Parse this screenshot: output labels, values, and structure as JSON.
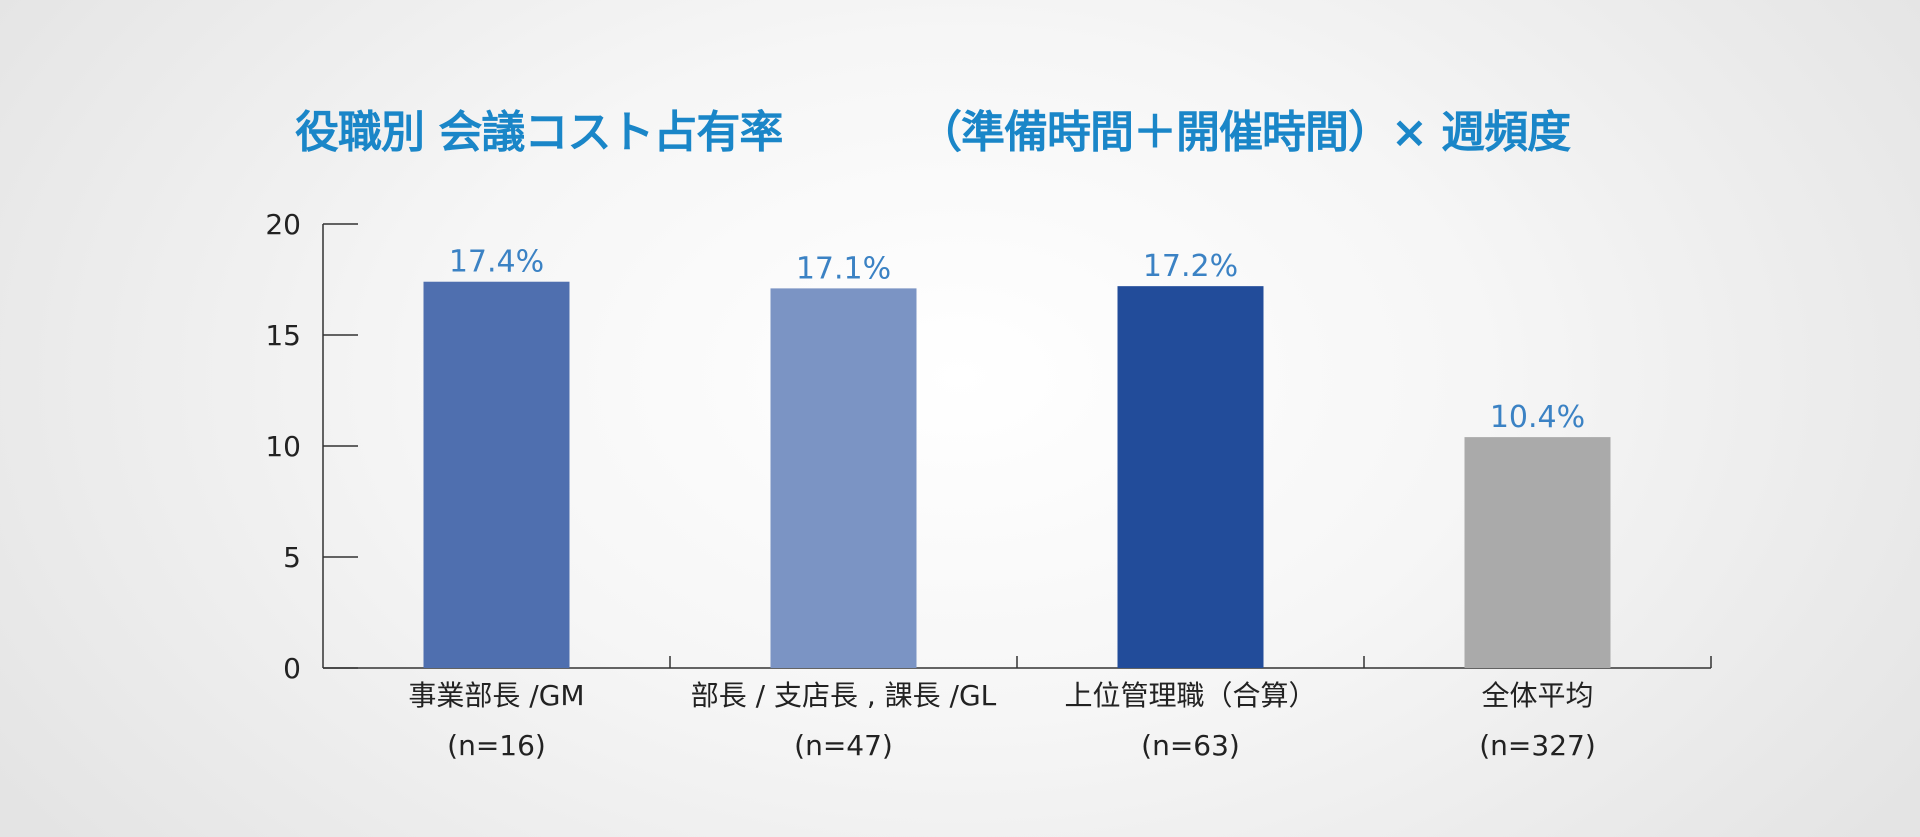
{
  "chart_data": {
    "type": "bar",
    "title": "役職別 会議コスト占有率",
    "subtitle": "（準備時間＋開催時間）× 週頻度",
    "categories": [
      "事業部長 /GM",
      "部長 / 支店長 , 課長 /GL",
      "上位管理職（合算）",
      "全体平均"
    ],
    "category_notes": [
      "(n=16)",
      "(n=47)",
      "(n=63)",
      "(n=327)"
    ],
    "values": [
      17.4,
      17.1,
      17.2,
      10.4
    ],
    "value_labels": [
      "17.4%",
      "17.1%",
      "17.2%",
      "10.4%"
    ],
    "bar_colors": [
      "#4f6faf",
      "#7b94c4",
      "#224c9a",
      "#aaaaaa"
    ],
    "label_color": "#3b82c4",
    "title_color": "#1a86c8",
    "ylim": [
      0,
      20
    ],
    "yticks": [
      "0",
      "5",
      "10",
      "15",
      "20"
    ],
    "xlabel": "",
    "ylabel": "",
    "grid": false,
    "legend": "none"
  }
}
